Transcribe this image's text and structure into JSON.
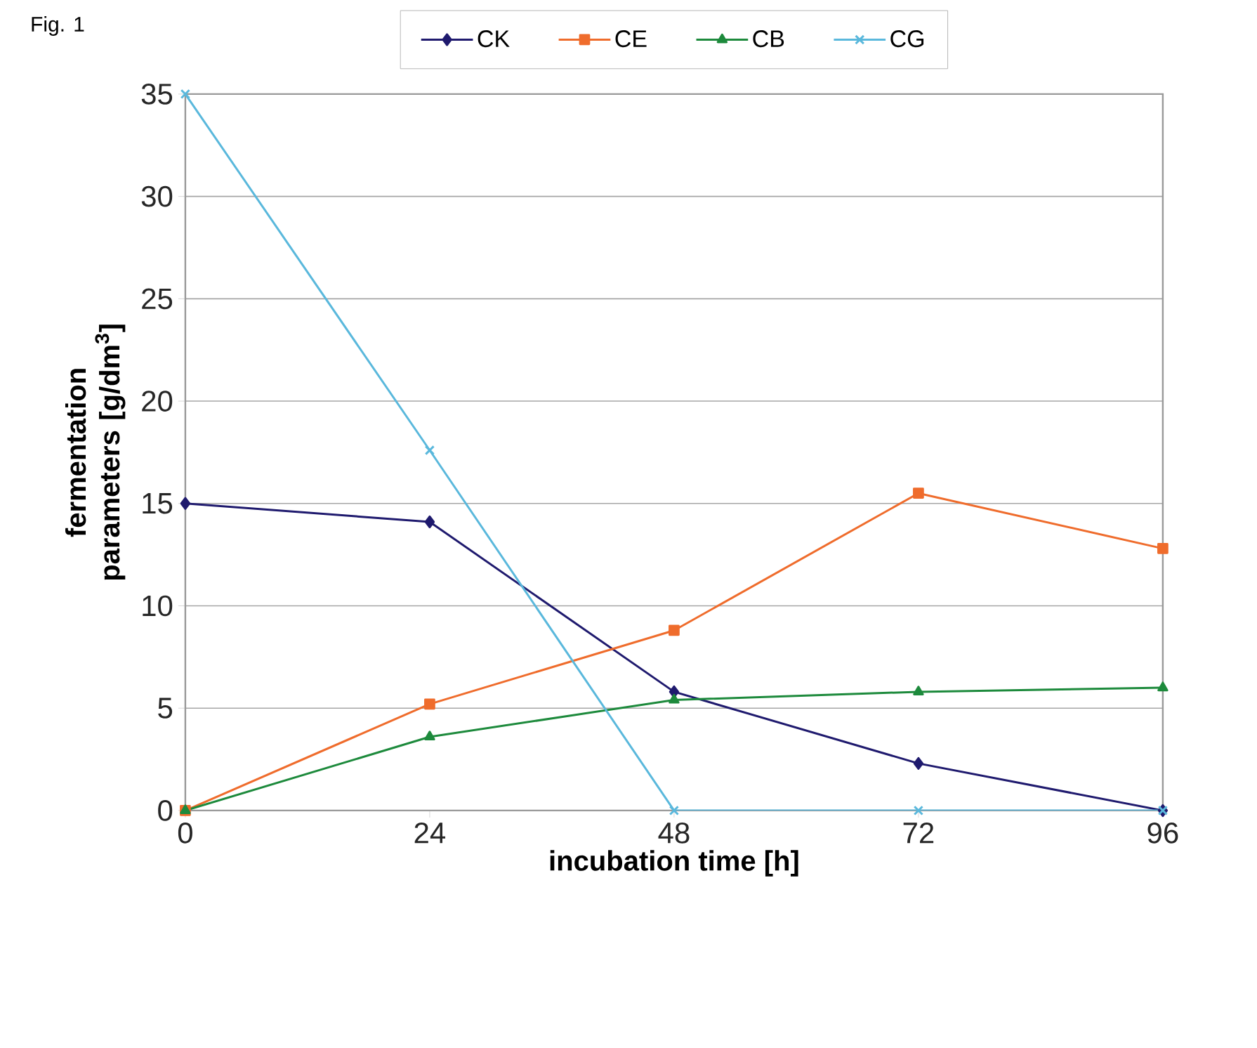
{
  "chart_data": {
    "type": "line",
    "annotations": [
      "Fig. 1"
    ],
    "xlabel": "incubation time [h]",
    "ylabel": "fermentation parameters [g/dm$^{3}$]",
    "x": [
      0,
      24,
      48,
      72,
      96
    ],
    "xlim": [
      0,
      96
    ],
    "xticks": [
      0,
      24,
      48,
      72,
      96
    ],
    "ylim": [
      0,
      35
    ],
    "yticks": [
      0,
      5,
      10,
      15,
      20,
      25,
      30,
      35
    ],
    "grid": "y",
    "legend": "top",
    "line_style": "solid",
    "series": [
      {
        "name": "CK",
        "color": "#1f1a6e",
        "marker": "diamond",
        "values": [
          15.0,
          14.1,
          5.8,
          2.3,
          0
        ]
      },
      {
        "name": "CE",
        "color": "#ef6c2c",
        "marker": "square",
        "values": [
          0,
          5.2,
          8.8,
          15.5,
          12.8
        ]
      },
      {
        "name": "CB",
        "color": "#1d8a3c",
        "marker": "triangle",
        "values": [
          0,
          3.6,
          5.4,
          5.8,
          6.0
        ]
      },
      {
        "name": "CG",
        "color": "#5ab8dc",
        "marker": "cross",
        "values": [
          35,
          17.6,
          0,
          0,
          0
        ]
      }
    ]
  }
}
